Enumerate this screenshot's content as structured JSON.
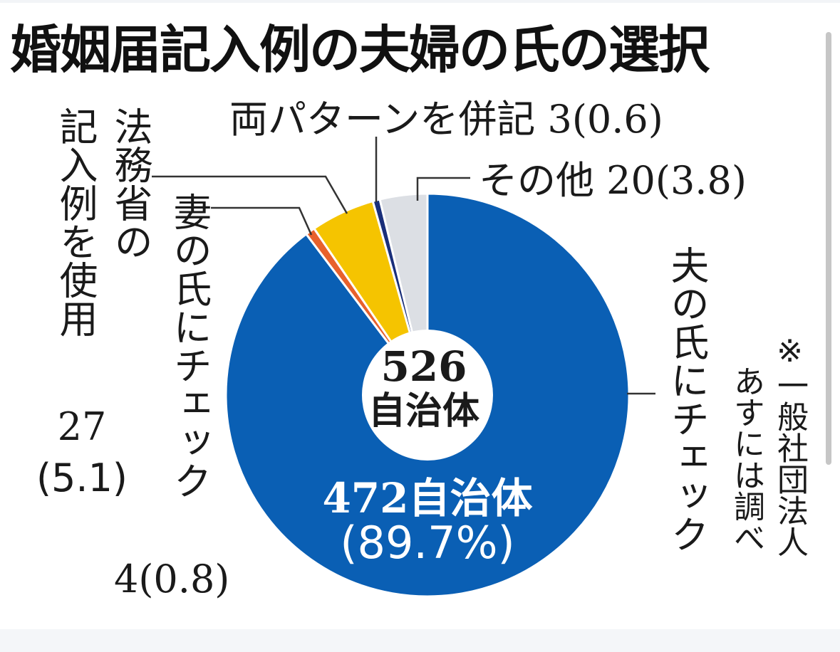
{
  "title": "婚姻届記入例の夫婦の氏の選択",
  "center": {
    "count": "526",
    "unit": "自治体"
  },
  "main_label": {
    "count": "472自治体",
    "pct": "(89.7%)"
  },
  "labels": {
    "husband": "夫の氏にチェック",
    "wife": "妻の氏にチェック",
    "wife_value": "4(0.8)",
    "ministry_col1": "法務省の",
    "ministry_col2": "記入例を使用",
    "ministry_value": "27",
    "ministry_pct": "(5.1)",
    "both": "両パターンを併記",
    "both_value": "3(0.6)",
    "other": "その他",
    "other_value": "20(3.8)"
  },
  "note": {
    "col1": "※一般社団法人",
    "col2": "あすには調べ"
  },
  "colors": {
    "husband": "#0a5fb4",
    "wife": "#e8612c",
    "ministry": "#f5c400",
    "both": "#1a2f7a",
    "other": "#dcdfe4",
    "divider": "#ffffff",
    "leader": "#333333"
  },
  "chart_data": {
    "type": "pie",
    "title": "婚姻届記入例の夫婦の氏の選択",
    "total": 526,
    "unit": "自治体",
    "start": "12 o'clock, clockwise",
    "donut": true,
    "slices": [
      {
        "label": "夫の氏にチェック",
        "value": 472,
        "pct": 89.7,
        "color": "#0a5fb4"
      },
      {
        "label": "妻の氏にチェック",
        "value": 4,
        "pct": 0.8,
        "color": "#e8612c"
      },
      {
        "label": "法務省の記入例を使用",
        "value": 27,
        "pct": 5.1,
        "color": "#f5c400"
      },
      {
        "label": "両パターンを併記",
        "value": 3,
        "pct": 0.6,
        "color": "#1a2f7a"
      },
      {
        "label": "その他",
        "value": 20,
        "pct": 3.8,
        "color": "#dcdfe4"
      }
    ],
    "note": "※一般社団法人あすには調べ"
  }
}
